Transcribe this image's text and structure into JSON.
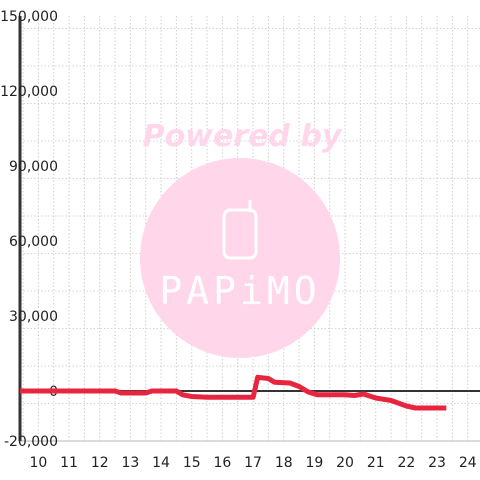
{
  "watermark": {
    "text": "Powered by",
    "logo": "PAPiMO",
    "color": "#ffd6ea"
  },
  "chart_data": {
    "type": "line",
    "title": "",
    "xlabel": "",
    "ylabel": "",
    "xlim": [
      9.4,
      24.4
    ],
    "ylim": [
      -20000,
      150000
    ],
    "x_ticks": [
      10,
      11,
      12,
      13,
      14,
      15,
      16,
      17,
      18,
      19,
      20,
      21,
      22,
      23,
      24
    ],
    "y_ticks": [
      -20000,
      0,
      30000,
      60000,
      90000,
      120000,
      150000
    ],
    "x_tick_labels": [
      "10",
      "11",
      "12",
      "13",
      "14",
      "15",
      "16",
      "17",
      "18",
      "19",
      "20",
      "21",
      "22",
      "23",
      "24"
    ],
    "y_tick_labels": [
      "-20,000",
      "0",
      "30,000",
      "60,000",
      "90,000",
      "120,000",
      "150,000"
    ],
    "grid": true,
    "line_color": "#e8253f",
    "series": [
      {
        "x": [
          9.4,
          12.5,
          12.7,
          13.5,
          13.7,
          14.5,
          14.7,
          15.0,
          15.5,
          17.0,
          17.15,
          17.5,
          17.7,
          18.2,
          18.5,
          18.8,
          19.1,
          19.5,
          20.0,
          20.3,
          20.6,
          21.0,
          21.5,
          22.0,
          22.3,
          23.3
        ],
        "y": [
          0,
          0,
          -800,
          -800,
          0,
          0,
          -1500,
          -2200,
          -2500,
          -2500,
          5500,
          5000,
          3500,
          3200,
          1800,
          -400,
          -1500,
          -1500,
          -1500,
          -1800,
          -1200,
          -2800,
          -3800,
          -6000,
          -6800,
          -6800
        ]
      }
    ]
  }
}
